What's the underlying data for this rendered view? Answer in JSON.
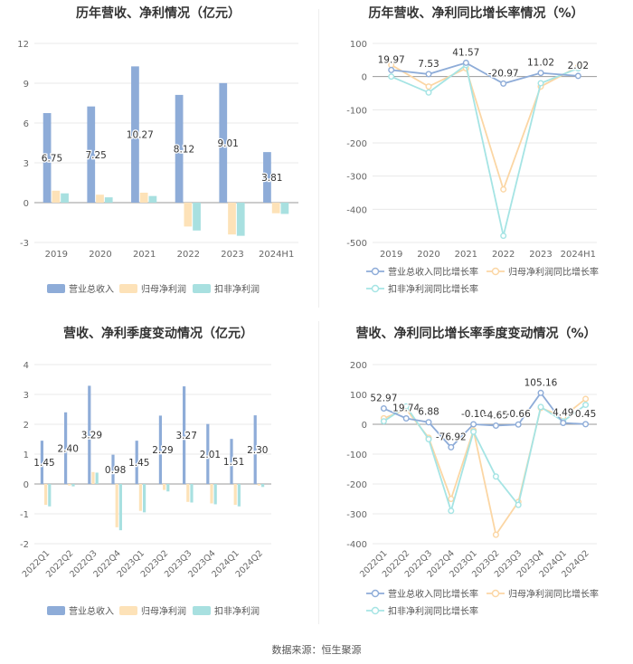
{
  "source": "数据来源：恒生聚源",
  "colors": {
    "revenue": "#8eacd8",
    "net_parent": "#fde2b8",
    "net_deduct": "#a8e0e0",
    "revenue_line": "#8eacd8",
    "parent_line": "#fbd6a4",
    "deduct_line": "#a5e4e4",
    "axis_text": "#666666",
    "grid": "#e8e8e8"
  },
  "chart_data": [
    {
      "id": "annual_bar",
      "type": "bar",
      "title": "历年营收、净利情况（亿元）",
      "categories": [
        "2019",
        "2020",
        "2021",
        "2022",
        "2023",
        "2024H1"
      ],
      "series": [
        {
          "name": "营业总收入",
          "values": [
            6.75,
            7.25,
            10.27,
            8.12,
            9.01,
            3.81
          ],
          "labels": [
            "6.75",
            "7.25",
            "10.27",
            "8.12",
            "9.01",
            "3.81"
          ]
        },
        {
          "name": "归母净利润",
          "values": [
            0.9,
            0.6,
            0.75,
            -1.8,
            -2.4,
            -0.8
          ]
        },
        {
          "name": "扣非净利润",
          "values": [
            0.7,
            0.4,
            0.5,
            -2.1,
            -2.5,
            -0.85
          ]
        }
      ],
      "yticks": [
        -3,
        0,
        3,
        6,
        9,
        12
      ],
      "ylim": [
        -3,
        12
      ],
      "legend_position": "bottom"
    },
    {
      "id": "annual_line",
      "type": "line",
      "title": "历年营收、净利同比增长率情况（%）",
      "categories": [
        "2019",
        "2020",
        "2021",
        "2022",
        "2023",
        "2024H1"
      ],
      "series": [
        {
          "name": "营业总收入同比增长率",
          "values": [
            19.97,
            7.53,
            41.57,
            -20.97,
            11.02,
            2.02
          ],
          "labels": [
            "19.97",
            "7.53",
            "41.57",
            "-20.97",
            "11.02",
            "2.02"
          ]
        },
        {
          "name": "归母净利润同比增长率",
          "values": [
            35,
            -30,
            25,
            -340,
            -30,
            30
          ]
        },
        {
          "name": "扣非净利润同比增长率",
          "values": [
            0,
            -48,
            35,
            -480,
            -20,
            25
          ]
        }
      ],
      "yticks": [
        -500,
        -400,
        -300,
        -200,
        -100,
        0,
        100
      ],
      "ylim": [
        -500,
        100
      ],
      "legend_position": "bottom"
    },
    {
      "id": "quarter_bar",
      "type": "bar",
      "title": "营收、净利季度变动情况（亿元）",
      "categories": [
        "2022Q1",
        "2022Q2",
        "2022Q3",
        "2022Q4",
        "2023Q1",
        "2023Q2",
        "2023Q3",
        "2023Q4",
        "2024Q1",
        "2024Q2"
      ],
      "series": [
        {
          "name": "营业总收入",
          "values": [
            1.45,
            2.4,
            3.29,
            0.98,
            1.45,
            2.29,
            3.27,
            2.01,
            1.51,
            2.3
          ],
          "labels": [
            "1.45",
            "2.40",
            "3.29",
            "0.98",
            "1.45",
            "2.29",
            "3.27",
            "2.01",
            "1.51",
            "2.30"
          ]
        },
        {
          "name": "归母净利润",
          "values": [
            -0.7,
            -0.05,
            0.4,
            -1.45,
            -0.9,
            -0.2,
            -0.6,
            -0.65,
            -0.7,
            -0.05
          ]
        },
        {
          "name": "扣非净利润",
          "values": [
            -0.75,
            -0.08,
            0.38,
            -1.55,
            -0.95,
            -0.25,
            -0.62,
            -0.68,
            -0.75,
            -0.1
          ]
        }
      ],
      "yticks": [
        -2,
        -1,
        0,
        1,
        2,
        3,
        4
      ],
      "ylim": [
        -2,
        4
      ],
      "legend_position": "bottom"
    },
    {
      "id": "quarter_line",
      "type": "line",
      "title": "营收、净利同比增长率季度变动情况（%）",
      "categories": [
        "2022Q1",
        "2022Q2",
        "2022Q3",
        "2022Q4",
        "2023Q1",
        "2023Q2",
        "2023Q3",
        "2023Q4",
        "2024Q1",
        "2024Q2"
      ],
      "series": [
        {
          "name": "营业总收入同比增长率",
          "values": [
            52.97,
            19.74,
            6.88,
            -76.92,
            -0.1,
            -4.65,
            -0.66,
            105.16,
            4.49,
            0.45
          ],
          "labels": [
            "52.97",
            "19.74",
            "6.88",
            "-76.92",
            "-0.10",
            "-4.65",
            "-0.66",
            "105.16",
            "4.49",
            "0.45"
          ]
        },
        {
          "name": "归母净利润同比增长率",
          "values": [
            20,
            50,
            -45,
            -250,
            -20,
            -370,
            -260,
            55,
            25,
            85
          ]
        },
        {
          "name": "扣非净利润同比增长率",
          "values": [
            10,
            60,
            -50,
            -290,
            -25,
            -175,
            -270,
            58,
            10,
            65
          ]
        }
      ],
      "yticks": [
        -400,
        -300,
        -200,
        -100,
        0,
        100,
        200
      ],
      "ylim": [
        -400,
        200
      ],
      "legend_position": "bottom"
    }
  ]
}
